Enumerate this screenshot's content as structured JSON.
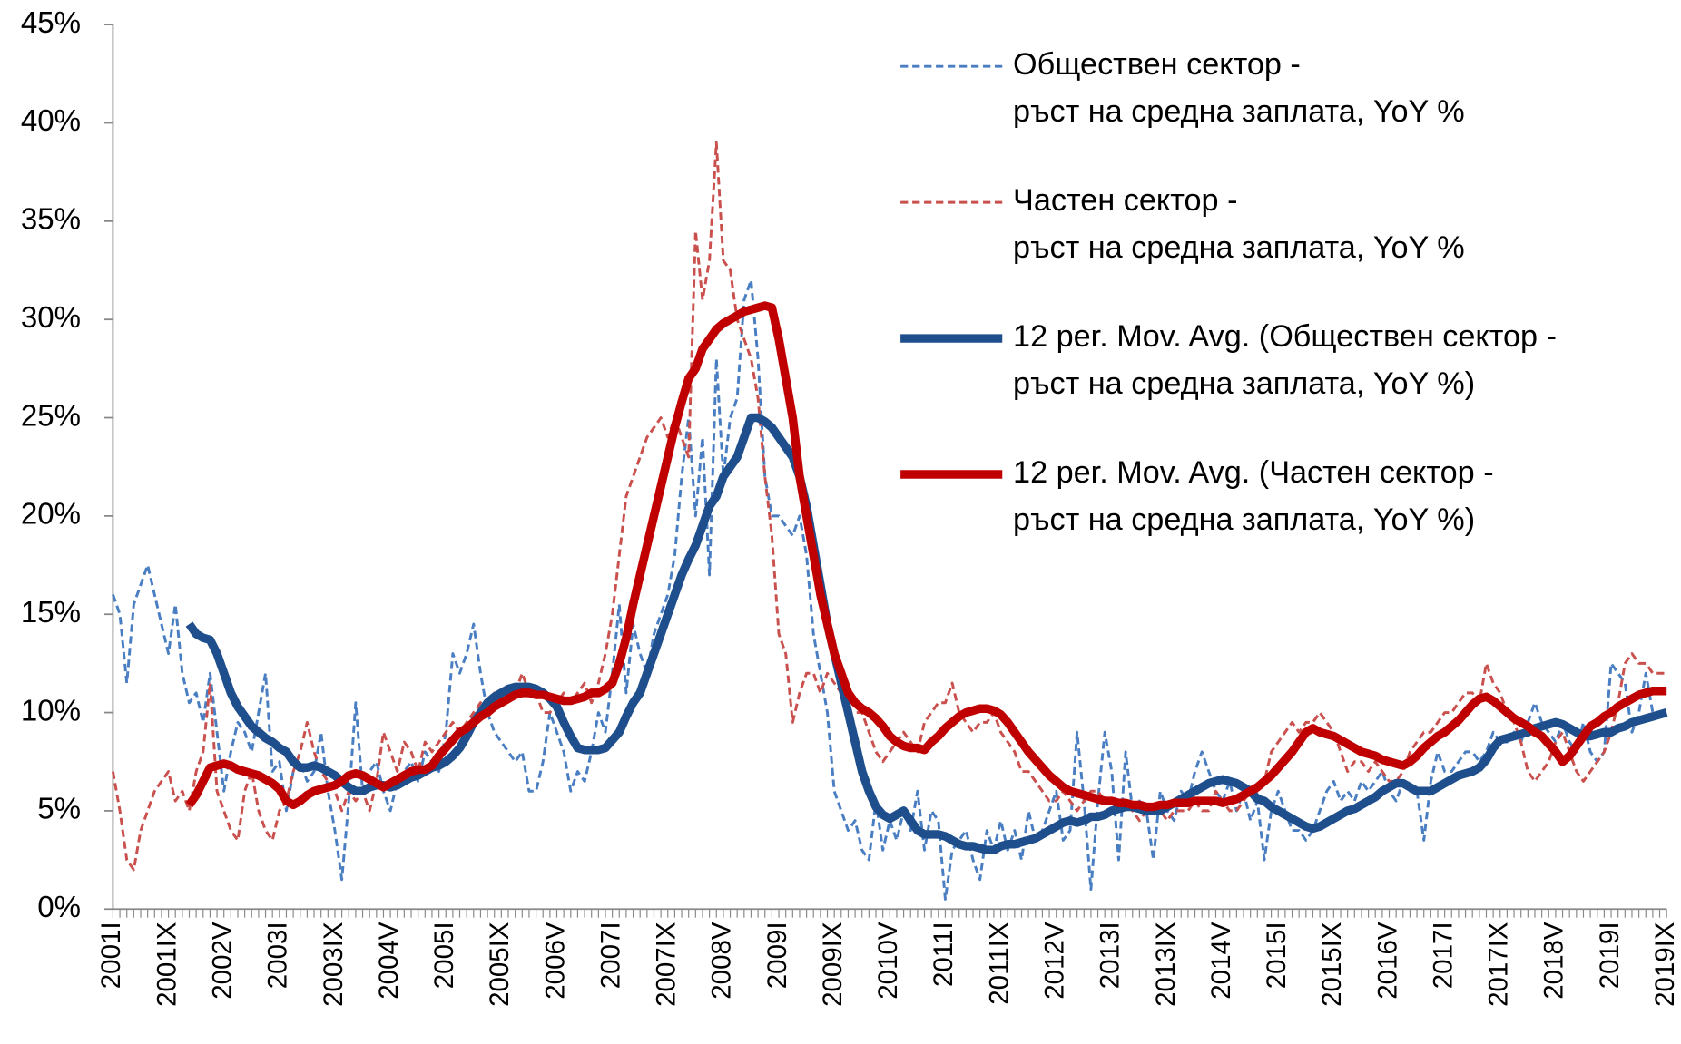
{
  "chart_data": {
    "type": "line",
    "categories": [
      "2001I",
      null,
      null,
      null,
      null,
      null,
      null,
      null,
      "2001IX",
      null,
      null,
      null,
      null,
      null,
      null,
      null,
      "2002V",
      null,
      null,
      null,
      null,
      null,
      null,
      null,
      "2003I",
      null,
      null,
      null,
      null,
      null,
      null,
      null,
      "2003IX",
      null,
      null,
      null,
      null,
      null,
      null,
      null,
      "2004V",
      null,
      null,
      null,
      null,
      null,
      null,
      null,
      "2005I",
      null,
      null,
      null,
      null,
      null,
      null,
      null,
      "2005IX",
      null,
      null,
      null,
      null,
      null,
      null,
      null,
      "2006V",
      null,
      null,
      null,
      null,
      null,
      null,
      null,
      "2007I",
      null,
      null,
      null,
      null,
      null,
      null,
      null,
      "2007IX",
      null,
      null,
      null,
      null,
      null,
      null,
      null,
      "2008V",
      null,
      null,
      null,
      null,
      null,
      null,
      null,
      "2009I",
      null,
      null,
      null,
      null,
      null,
      null,
      null,
      "2009IX",
      null,
      null,
      null,
      null,
      null,
      null,
      null,
      "2010V",
      null,
      null,
      null,
      null,
      null,
      null,
      null,
      "2011I",
      null,
      null,
      null,
      null,
      null,
      null,
      null,
      "2011IX",
      null,
      null,
      null,
      null,
      null,
      null,
      null,
      "2012V",
      null,
      null,
      null,
      null,
      null,
      null,
      null,
      "2013I",
      null,
      null,
      null,
      null,
      null,
      null,
      null,
      "2013IX",
      null,
      null,
      null,
      null,
      null,
      null,
      null,
      "2014V",
      null,
      null,
      null,
      null,
      null,
      null,
      null,
      "2015I",
      null,
      null,
      null,
      null,
      null,
      null,
      null,
      "2015IX",
      null,
      null,
      null,
      null,
      null,
      null,
      null,
      "2016V",
      null,
      null,
      null,
      null,
      null,
      null,
      null,
      "2017I",
      null,
      null,
      null,
      null,
      null,
      null,
      null,
      "2017IX",
      null,
      null,
      null,
      null,
      null,
      null,
      null,
      "2018V",
      null,
      null,
      null,
      null,
      null,
      null,
      null,
      "2019I",
      null,
      null,
      null,
      null,
      null,
      null,
      null,
      "2019IX"
    ],
    "series": [
      {
        "name": "Обществен сектор - ръст на средна заплата, YoY %",
        "color": "#4a7ec2",
        "dashed": true,
        "width": 2.5,
        "values": [
          16,
          15,
          11.5,
          15.5,
          16.5,
          17.5,
          16,
          14.5,
          13,
          15.5,
          12,
          10.5,
          11,
          9.5,
          12,
          9,
          6,
          8,
          9.5,
          9,
          8,
          10,
          12,
          7,
          7.5,
          5,
          7,
          7.5,
          6.5,
          7,
          9,
          6,
          4,
          1.5,
          5.5,
          10.5,
          6,
          7,
          7.5,
          6,
          5,
          6.5,
          7,
          7.5,
          6.5,
          8,
          7.5,
          7,
          9,
          13,
          12,
          13,
          14.5,
          12,
          10,
          9,
          8.5,
          8,
          7.5,
          8,
          6,
          6,
          7.5,
          10,
          9,
          8,
          6,
          7,
          6.5,
          8,
          10,
          9,
          12,
          15.5,
          11,
          14.5,
          13,
          12,
          14,
          15,
          16,
          18,
          22,
          25,
          20,
          24,
          17,
          28,
          22,
          25,
          26,
          31,
          32,
          28,
          22,
          20,
          20,
          19.5,
          19,
          20,
          18,
          14,
          12,
          10,
          6,
          5,
          4,
          4.5,
          3,
          2.5,
          5.5,
          3,
          4.5,
          3.5,
          5,
          4,
          6,
          3,
          5,
          4.5,
          0.5,
          3,
          3.5,
          4,
          2.5,
          1.5,
          4,
          3,
          4.5,
          3,
          4,
          2.5,
          5,
          3.5,
          4,
          5,
          6,
          3.5,
          4,
          9,
          5.5,
          1,
          5.5,
          9,
          7,
          2.5,
          8,
          5,
          5.5,
          5,
          2.5,
          6,
          5,
          4.5,
          6,
          5.5,
          7,
          8,
          7,
          6,
          5.5,
          6.5,
          5,
          6,
          4.5,
          5.5,
          2.5,
          5,
          6,
          5,
          4,
          4,
          3.5,
          4,
          5,
          6,
          6.5,
          5.5,
          6,
          5.5,
          6.5,
          6,
          6.5,
          7,
          6,
          5.5,
          6.5,
          6,
          6,
          3.5,
          6.5,
          8,
          7,
          7,
          7.5,
          8,
          8,
          7.5,
          8,
          9,
          8.5,
          8.5,
          9,
          8.5,
          9.5,
          10.5,
          9.5,
          9,
          8.5,
          9.5,
          8.5,
          8,
          9.5,
          8,
          7.5,
          8,
          12.5,
          12,
          11.5,
          9,
          10,
          12,
          10,
          10,
          10
        ]
      },
      {
        "name": "Частен сектор - ръст на средна заплата, YoY %",
        "color": "#c9504d",
        "dashed": true,
        "width": 2.5,
        "values": [
          7,
          5,
          2.5,
          2,
          4,
          5,
          6,
          6.5,
          7,
          5.5,
          6,
          5,
          7,
          8,
          11.5,
          6,
          5,
          4,
          3.5,
          6,
          7,
          5,
          4,
          3.5,
          5,
          5.5,
          7,
          8,
          9.5,
          8,
          7,
          6.5,
          6,
          5,
          6,
          5.5,
          6,
          5,
          6.5,
          9,
          8,
          7,
          8.5,
          8,
          7,
          8.5,
          8,
          8.5,
          9,
          9.5,
          9,
          9.5,
          10,
          10.5,
          10,
          11,
          10.5,
          11,
          11,
          12,
          11,
          11,
          10,
          10,
          10.5,
          11,
          10.5,
          11,
          11.5,
          10.5,
          11.5,
          13,
          15,
          18,
          21,
          22,
          23,
          24,
          24.5,
          25,
          24,
          25,
          24,
          23,
          34.5,
          31,
          33,
          39,
          33,
          32.5,
          30,
          29,
          28,
          26,
          22,
          19,
          14,
          13,
          9.5,
          11,
          12,
          12,
          11,
          12,
          11.5,
          11,
          10,
          10,
          10,
          9,
          8,
          7.5,
          8,
          8.5,
          9,
          8.5,
          8,
          9.5,
          10,
          10.5,
          10.5,
          11.5,
          10,
          9.5,
          9,
          9.5,
          9.5,
          10,
          9,
          8.5,
          8,
          7,
          7,
          6.5,
          6,
          5.5,
          5.5,
          6,
          5.5,
          5,
          5.5,
          6,
          6,
          5.5,
          5.5,
          5,
          5.5,
          5,
          4.5,
          5,
          5,
          5,
          4.5,
          5,
          5,
          5,
          5.5,
          5,
          5,
          6,
          5.5,
          5,
          5,
          5.5,
          6,
          6,
          6.5,
          8,
          8.5,
          9,
          9.5,
          9,
          9.5,
          9.5,
          10,
          9.5,
          9,
          8,
          7,
          7.5,
          7.5,
          7,
          7.5,
          7,
          6.5,
          6.5,
          7,
          8,
          8.5,
          9,
          9,
          9.5,
          10,
          10,
          10.5,
          11,
          11,
          10.5,
          12.5,
          11.5,
          11,
          10,
          9.5,
          8.5,
          7,
          6.5,
          7,
          7.5,
          8.5,
          9,
          8,
          7,
          6.5,
          7,
          7.5,
          8,
          9,
          10.5,
          12.5,
          13,
          12.5,
          12.5,
          12,
          12,
          12
        ]
      },
      {
        "name": "12 per. Mov. Avg. (Обществен сектор - ръст на средна заплата, YoY %)",
        "color": "#1f4e8c",
        "dashed": false,
        "width": 8,
        "values": [
          null,
          null,
          null,
          null,
          null,
          null,
          null,
          null,
          null,
          null,
          null,
          14.5,
          14,
          13.8,
          13.7,
          13,
          12,
          11,
          10.3,
          9.8,
          9.3,
          9,
          8.7,
          8.5,
          8.2,
          8,
          7.5,
          7.2,
          7.2,
          7.3,
          7.2,
          7,
          6.8,
          6.5,
          6.2,
          6,
          6,
          6.2,
          6.3,
          6.3,
          6.2,
          6.3,
          6.5,
          6.7,
          6.8,
          7,
          7.2,
          7.3,
          7.5,
          7.8,
          8.2,
          8.8,
          9.5,
          10,
          10.5,
          10.8,
          11,
          11.2,
          11.3,
          11.3,
          11.3,
          11.2,
          11,
          10.7,
          10.3,
          9.5,
          8.8,
          8.2,
          8.1,
          8.1,
          8.1,
          8.2,
          8.6,
          9,
          9.8,
          10.5,
          11,
          12,
          13,
          14,
          15,
          16,
          17,
          17.8,
          18.5,
          19.5,
          20.5,
          21,
          22,
          22.5,
          23,
          24,
          25,
          25,
          24.8,
          24.5,
          24,
          23.5,
          23,
          22,
          20.5,
          18.5,
          16.5,
          14.5,
          13,
          11.5,
          10,
          8.5,
          7,
          6,
          5.2,
          4.8,
          4.6,
          4.8,
          5,
          4.5,
          4,
          3.8,
          3.8,
          3.8,
          3.7,
          3.5,
          3.3,
          3.2,
          3.2,
          3.1,
          3,
          3,
          3.2,
          3.3,
          3.3,
          3.4,
          3.5,
          3.6,
          3.8,
          4,
          4.2,
          4.4,
          4.5,
          4.4,
          4.5,
          4.7,
          4.7,
          4.8,
          5,
          5.1,
          5.2,
          5.2,
          5.1,
          5,
          5,
          5,
          5.2,
          5.4,
          5.6,
          5.8,
          6,
          6.2,
          6.4,
          6.5,
          6.6,
          6.5,
          6.4,
          6.2,
          6,
          5.6,
          5.5,
          5.2,
          5,
          4.8,
          4.6,
          4.4,
          4.2,
          4.1,
          4.2,
          4.4,
          4.6,
          4.8,
          5,
          5.1,
          5.3,
          5.5,
          5.7,
          6,
          6.2,
          6.4,
          6.4,
          6.2,
          6,
          6,
          6,
          6.2,
          6.4,
          6.6,
          6.8,
          6.9,
          7,
          7.2,
          7.6,
          8.2,
          8.6,
          8.7,
          8.8,
          8.9,
          9,
          9.2,
          9.3,
          9.4,
          9.5,
          9.4,
          9.2,
          9,
          8.8,
          8.8,
          8.9,
          9,
          9,
          9.2,
          9.3,
          9.5,
          9.6,
          9.7,
          9.8,
          9.9,
          10
        ]
      },
      {
        "name": "12 per. Mov. Avg. (Частен сектор - ръст на средна заплата, YoY %)",
        "color": "#c00000",
        "dashed": false,
        "width": 8,
        "values": [
          null,
          null,
          null,
          null,
          null,
          null,
          null,
          null,
          null,
          null,
          null,
          5.3,
          5.8,
          6.5,
          7.2,
          7.3,
          7.4,
          7.3,
          7.1,
          7,
          6.9,
          6.8,
          6.6,
          6.4,
          6.1,
          5.5,
          5.3,
          5.5,
          5.8,
          6,
          6.1,
          6.2,
          6.3,
          6.5,
          6.8,
          6.9,
          6.8,
          6.6,
          6.4,
          6.2,
          6.4,
          6.6,
          6.8,
          7,
          7.1,
          7.1,
          7.3,
          7.8,
          8.2,
          8.6,
          9,
          9.2,
          9.5,
          9.8,
          10,
          10.3,
          10.5,
          10.7,
          10.9,
          11,
          11,
          10.9,
          10.9,
          10.8,
          10.7,
          10.6,
          10.6,
          10.7,
          10.8,
          11,
          11,
          11.2,
          11.5,
          12.5,
          13.8,
          15.5,
          17,
          18.5,
          20,
          21.5,
          23,
          24.5,
          25.8,
          27,
          27.5,
          28.5,
          29,
          29.5,
          29.8,
          30,
          30.2,
          30.4,
          30.5,
          30.6,
          30.7,
          30.6,
          29,
          27,
          25,
          22,
          20,
          18,
          16,
          14.5,
          13,
          12,
          11,
          10.5,
          10.2,
          10,
          9.7,
          9.3,
          8.8,
          8.5,
          8.3,
          8.2,
          8.2,
          8.1,
          8.5,
          8.8,
          9.2,
          9.5,
          9.8,
          10,
          10.1,
          10.2,
          10.2,
          10.1,
          9.9,
          9.5,
          9,
          8.5,
          8,
          7.6,
          7.2,
          6.8,
          6.5,
          6.2,
          6,
          5.9,
          5.8,
          5.7,
          5.6,
          5.5,
          5.5,
          5.4,
          5.4,
          5.3,
          5.3,
          5.2,
          5.2,
          5.3,
          5.3,
          5.4,
          5.4,
          5.4,
          5.5,
          5.5,
          5.5,
          5.5,
          5.4,
          5.5,
          5.6,
          5.8,
          6,
          6.2,
          6.5,
          6.8,
          7.2,
          7.6,
          8,
          8.5,
          9,
          9.2,
          9,
          8.9,
          8.8,
          8.6,
          8.4,
          8.2,
          8,
          7.9,
          7.8,
          7.6,
          7.5,
          7.4,
          7.3,
          7.5,
          7.8,
          8.2,
          8.5,
          8.8,
          9,
          9.3,
          9.6,
          10,
          10.4,
          10.7,
          10.8,
          10.6,
          10.3,
          10,
          9.7,
          9.5,
          9.3,
          9,
          8.8,
          8.4,
          8,
          7.5,
          7.8,
          8.3,
          8.8,
          9.3,
          9.5,
          9.8,
          10,
          10.3,
          10.5,
          10.7,
          10.9,
          11,
          11.1,
          11.1,
          11.1
        ]
      }
    ],
    "ylim": [
      0,
      45
    ],
    "yticks": [
      {
        "value": 0,
        "label": "0%"
      },
      {
        "value": 5,
        "label": "5%"
      },
      {
        "value": 10,
        "label": "10%"
      },
      {
        "value": 15,
        "label": "15%"
      },
      {
        "value": 20,
        "label": "20%"
      },
      {
        "value": 25,
        "label": "25%"
      },
      {
        "value": 30,
        "label": "30%"
      },
      {
        "value": 35,
        "label": "35%"
      },
      {
        "value": 40,
        "label": "40%"
      },
      {
        "value": 45,
        "label": "45%"
      }
    ],
    "grid": false,
    "legend": "top-right"
  }
}
